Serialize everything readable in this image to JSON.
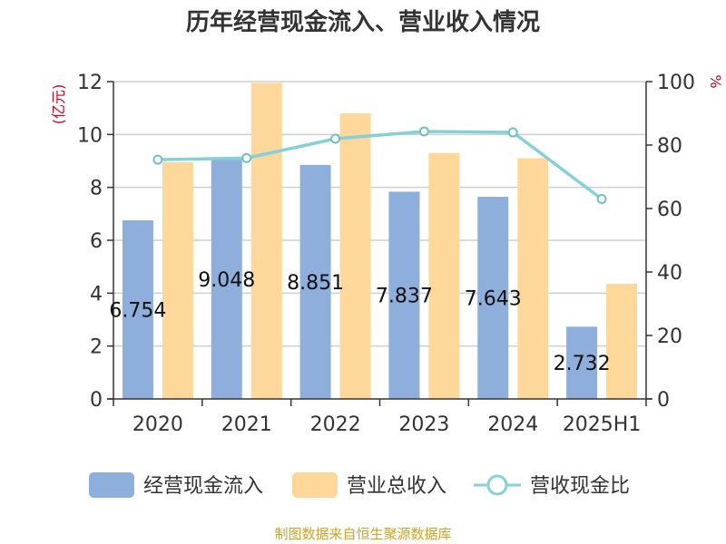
{
  "chart_data": {
    "type": "bar",
    "title": "历年经营现金流入、营业收入情况",
    "categories": [
      "2020",
      "2021",
      "2022",
      "2023",
      "2024",
      "2025H1"
    ],
    "y_left_label": "(亿元)",
    "y_right_label": "%",
    "ylim_left": [
      0,
      12
    ],
    "y_left_ticks": [
      0,
      2,
      4,
      6,
      8,
      10,
      12
    ],
    "ylim_right": [
      0,
      100
    ],
    "y_right_ticks": [
      0,
      20,
      40,
      60,
      80,
      100
    ],
    "grid": true,
    "legend_position": "bottom",
    "series": [
      {
        "name": "经营现金流入",
        "type": "bar",
        "axis": "left",
        "color": "#8eaedb",
        "values": [
          6.754,
          9.048,
          8.851,
          7.837,
          7.643,
          2.732
        ],
        "data_labels": [
          "6.754",
          "9.048",
          "8.851",
          "7.837",
          "7.643",
          "2.732"
        ]
      },
      {
        "name": "营业总收入",
        "type": "bar",
        "axis": "left",
        "color": "#fdd89a",
        "values": [
          8.95,
          11.95,
          10.8,
          9.3,
          9.1,
          4.35
        ]
      },
      {
        "name": "营收现金比",
        "type": "line",
        "axis": "right",
        "color": "#86d1d7",
        "values": [
          75.4,
          75.9,
          82.0,
          84.3,
          84.0,
          63.0
        ]
      }
    ]
  },
  "source_note": "制图数据来自恒生聚源数据库"
}
